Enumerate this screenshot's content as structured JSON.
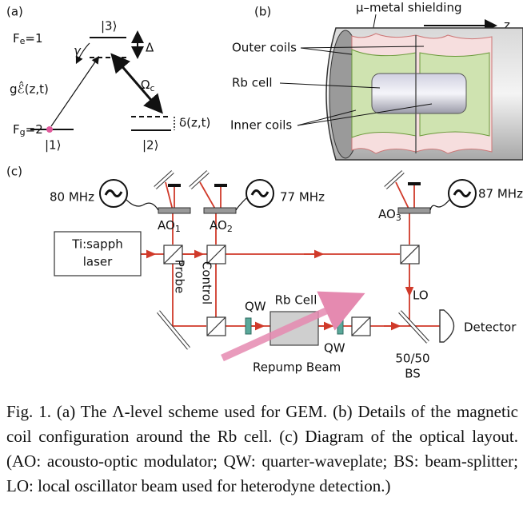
{
  "panel_a": {
    "label": "(a)",
    "fe": {
      "main": "F",
      "sub": "e",
      "rest": "=1"
    },
    "fg": {
      "main": "F",
      "sub": "g",
      "rest": "=2"
    },
    "state3": "|3⟩",
    "state1": "|1⟩",
    "state2": "|2⟩",
    "detuning": "Δ",
    "decay": "γ",
    "probe_field": "gℰ̂(z,t)",
    "control": {
      "main": "Ω",
      "sub": "c"
    },
    "two_photon": "δ(z,t)"
  },
  "panel_b": {
    "label": "(b)",
    "shielding": "μ–metal shielding",
    "axis": "z",
    "outer_coils": "Outer coils",
    "rb_cell": "Rb cell",
    "inner_coils": "Inner coils"
  },
  "panel_c": {
    "label": "(c)",
    "freq1": "80 MHz",
    "freq2": "77 MHz",
    "freq3": "87 MHz",
    "ao1": {
      "main": "AO",
      "sub": "1"
    },
    "ao2": {
      "main": "AO",
      "sub": "2"
    },
    "ao3": {
      "main": "AO",
      "sub": "3"
    },
    "laser": [
      "Ti:sapph",
      "laser"
    ],
    "probe": "Probe",
    "control": "Control",
    "qw1": "QW",
    "qw2": "QW",
    "rb_cell": "Rb Cell",
    "lo": "LO",
    "detector": "Detector",
    "bs": [
      "50/50",
      "BS"
    ],
    "repump": "Repump Beam"
  },
  "caption": "Fig. 1. (a) The Λ-level scheme used for GEM. (b) Details of the magnetic coil configuration around the Rb cell. (c) Diagram of the optical layout. (AO: acousto-optic modulator; QW: quarter-waveplate; BS: beam-splitter; LO: local oscillator beam used for heterodyne detection.)"
}
